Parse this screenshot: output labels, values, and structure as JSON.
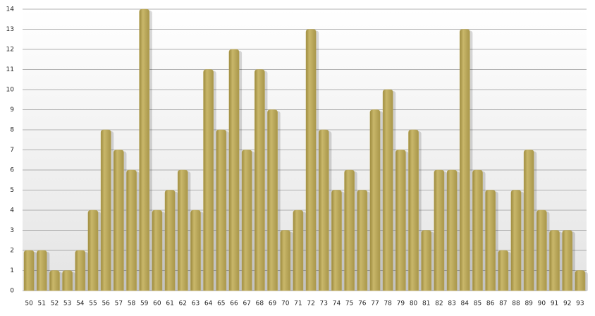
{
  "chart_data": {
    "type": "bar",
    "categories": [
      "50",
      "51",
      "52",
      "53",
      "54",
      "55",
      "56",
      "57",
      "58",
      "59",
      "60",
      "61",
      "62",
      "63",
      "64",
      "65",
      "66",
      "67",
      "68",
      "69",
      "70",
      "71",
      "72",
      "73",
      "74",
      "75",
      "76",
      "77",
      "78",
      "79",
      "80",
      "81",
      "82",
      "83",
      "84",
      "85",
      "86",
      "87",
      "88",
      "89",
      "90",
      "91",
      "92",
      "93"
    ],
    "values": [
      2,
      2,
      1,
      1,
      2,
      4,
      8,
      7,
      6,
      14,
      4,
      5,
      6,
      4,
      11,
      8,
      12,
      7,
      11,
      9,
      3,
      4,
      13,
      8,
      5,
      6,
      5,
      9,
      10,
      7,
      8,
      3,
      6,
      6,
      13,
      6,
      5,
      2,
      5,
      7,
      4,
      3,
      3,
      1
    ],
    "color": "#bba95a",
    "ylim": [
      0,
      14
    ],
    "yticks": [
      0,
      1,
      2,
      3,
      4,
      5,
      6,
      7,
      8,
      9,
      10,
      11,
      12,
      13,
      14
    ],
    "grid": true
  }
}
